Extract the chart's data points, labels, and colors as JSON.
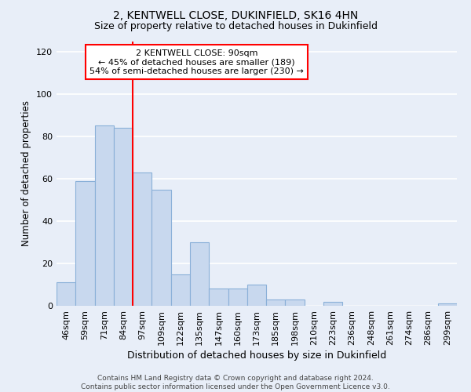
{
  "title": "2, KENTWELL CLOSE, DUKINFIELD, SK16 4HN",
  "subtitle": "Size of property relative to detached houses in Dukinfield",
  "xlabel": "Distribution of detached houses by size in Dukinfield",
  "ylabel": "Number of detached properties",
  "categories": [
    "46sqm",
    "59sqm",
    "71sqm",
    "84sqm",
    "97sqm",
    "109sqm",
    "122sqm",
    "135sqm",
    "147sqm",
    "160sqm",
    "173sqm",
    "185sqm",
    "198sqm",
    "210sqm",
    "223sqm",
    "236sqm",
    "248sqm",
    "261sqm",
    "274sqm",
    "286sqm",
    "299sqm"
  ],
  "values": [
    11,
    59,
    85,
    84,
    63,
    55,
    15,
    30,
    8,
    8,
    10,
    3,
    3,
    0,
    2,
    0,
    0,
    0,
    0,
    0,
    1
  ],
  "bar_color": "#c8d8ee",
  "bar_edge_color": "#8ab0d8",
  "vline_color": "red",
  "vline_position": 3.5,
  "annotation_text": "2 KENTWELL CLOSE: 90sqm\n← 45% of detached houses are smaller (189)\n54% of semi-detached houses are larger (230) →",
  "annotation_box_facecolor": "white",
  "annotation_box_edgecolor": "red",
  "footer_text": "Contains HM Land Registry data © Crown copyright and database right 2024.\nContains public sector information licensed under the Open Government Licence v3.0.",
  "ylim": [
    0,
    125
  ],
  "yticks": [
    0,
    20,
    40,
    60,
    80,
    100,
    120
  ],
  "bg_color": "#e8eef8",
  "grid_color": "white",
  "title_fontsize": 10,
  "subtitle_fontsize": 9,
  "xlabel_fontsize": 9,
  "ylabel_fontsize": 8.5,
  "tick_fontsize": 8,
  "xtick_fontsize": 7.5,
  "footer_fontsize": 6.5,
  "annotation_fontsize": 8
}
